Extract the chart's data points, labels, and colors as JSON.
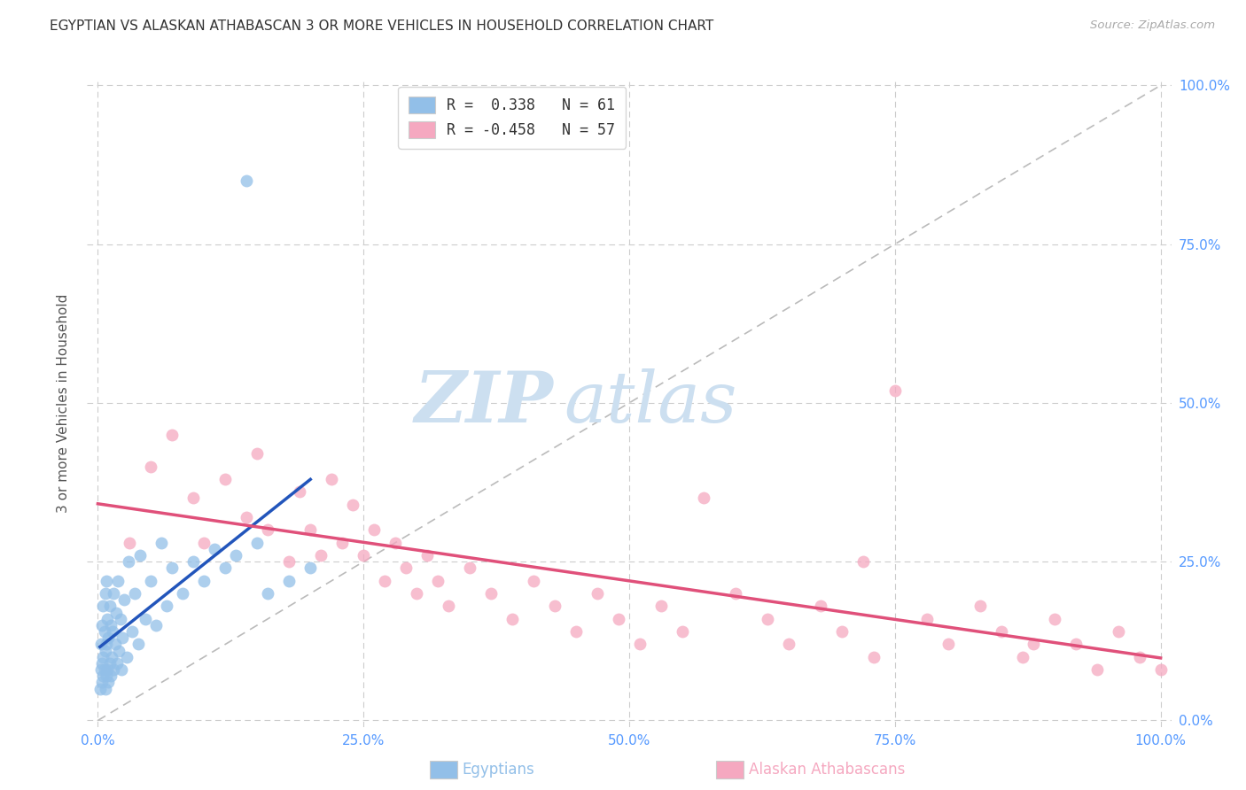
{
  "title": "EGYPTIAN VS ALASKAN ATHABASCAN 3 OR MORE VEHICLES IN HOUSEHOLD CORRELATION CHART",
  "source": "Source: ZipAtlas.com",
  "ylabel": "3 or more Vehicles in Household",
  "legend_r1_label": "R =  0.338   N = 61",
  "legend_r2_label": "R = -0.458   N = 57",
  "blue_color": "#92bfe8",
  "pink_color": "#f5a8c0",
  "blue_line_color": "#2255bb",
  "pink_line_color": "#e0507a",
  "diagonal_color": "#bbbbbb",
  "watermark_zip": "ZIP",
  "watermark_atlas": "atlas",
  "watermark_color": "#ccdff0",
  "background": "#ffffff",
  "title_color": "#333333",
  "tick_label_color": "#5599ff",
  "grid_color": "#cccccc",
  "source_color": "#aaaaaa",
  "ylabel_color": "#555555",
  "bottom_label1": "Egyptians",
  "bottom_label2": "Alaskan Athabascans",
  "egypt_x": [
    0.2,
    0.3,
    0.3,
    0.4,
    0.4,
    0.4,
    0.5,
    0.5,
    0.5,
    0.6,
    0.6,
    0.7,
    0.7,
    0.7,
    0.8,
    0.8,
    0.8,
    0.9,
    0.9,
    1.0,
    1.0,
    1.1,
    1.1,
    1.2,
    1.2,
    1.3,
    1.4,
    1.5,
    1.5,
    1.6,
    1.7,
    1.8,
    1.9,
    2.0,
    2.1,
    2.2,
    2.3,
    2.5,
    2.7,
    2.9,
    3.2,
    3.5,
    3.8,
    4.0,
    4.5,
    5.0,
    5.5,
    6.0,
    6.5,
    7.0,
    8.0,
    9.0,
    10.0,
    11.0,
    12.0,
    13.0,
    14.0,
    15.0,
    16.0,
    18.0,
    20.0
  ],
  "egypt_y": [
    5.0,
    8.0,
    12.0,
    6.0,
    9.0,
    15.0,
    7.0,
    10.0,
    18.0,
    8.0,
    14.0,
    5.0,
    11.0,
    20.0,
    7.0,
    12.0,
    22.0,
    8.0,
    16.0,
    6.0,
    13.0,
    9.0,
    18.0,
    7.0,
    15.0,
    10.0,
    14.0,
    8.0,
    20.0,
    12.0,
    17.0,
    9.0,
    22.0,
    11.0,
    16.0,
    8.0,
    13.0,
    19.0,
    10.0,
    25.0,
    14.0,
    20.0,
    12.0,
    26.0,
    16.0,
    22.0,
    15.0,
    28.0,
    18.0,
    24.0,
    20.0,
    25.0,
    22.0,
    27.0,
    24.0,
    26.0,
    85.0,
    28.0,
    20.0,
    22.0,
    24.0
  ],
  "alaska_x": [
    3.0,
    5.0,
    7.0,
    9.0,
    10.0,
    12.0,
    14.0,
    15.0,
    16.0,
    18.0,
    19.0,
    20.0,
    21.0,
    22.0,
    23.0,
    24.0,
    25.0,
    26.0,
    27.0,
    28.0,
    29.0,
    30.0,
    31.0,
    32.0,
    33.0,
    35.0,
    37.0,
    39.0,
    41.0,
    43.0,
    45.0,
    47.0,
    49.0,
    51.0,
    53.0,
    55.0,
    57.0,
    60.0,
    63.0,
    65.0,
    68.0,
    70.0,
    73.0,
    75.0,
    78.0,
    80.0,
    83.0,
    85.0,
    87.0,
    90.0,
    92.0,
    94.0,
    96.0,
    98.0,
    100.0,
    72.0,
    88.0
  ],
  "alaska_y": [
    28.0,
    40.0,
    45.0,
    35.0,
    28.0,
    38.0,
    32.0,
    42.0,
    30.0,
    25.0,
    36.0,
    30.0,
    26.0,
    38.0,
    28.0,
    34.0,
    26.0,
    30.0,
    22.0,
    28.0,
    24.0,
    20.0,
    26.0,
    22.0,
    18.0,
    24.0,
    20.0,
    16.0,
    22.0,
    18.0,
    14.0,
    20.0,
    16.0,
    12.0,
    18.0,
    14.0,
    35.0,
    20.0,
    16.0,
    12.0,
    18.0,
    14.0,
    10.0,
    52.0,
    16.0,
    12.0,
    18.0,
    14.0,
    10.0,
    16.0,
    12.0,
    8.0,
    14.0,
    10.0,
    8.0,
    25.0,
    12.0
  ]
}
